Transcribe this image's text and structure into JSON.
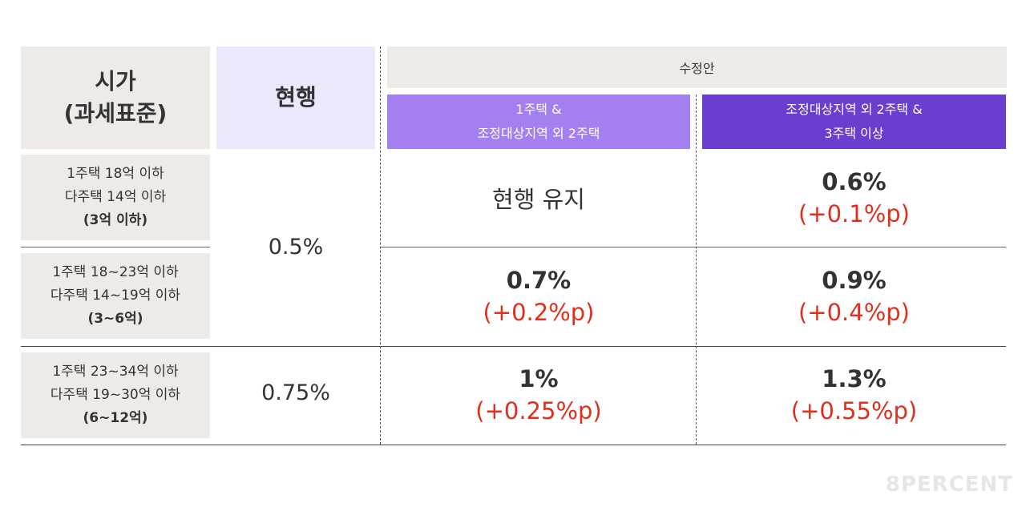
{
  "header": {
    "price_label_line1": "시가",
    "price_label_line2": "(과세표준)",
    "current_label": "현행",
    "revision_label": "수정안",
    "col1_line1": "1주택 &",
    "col1_line2": "조정대상지역 외 2주택",
    "col2_line1": "조정대상지역 외 2주택 &",
    "col2_line2": "3주택 이상"
  },
  "rows": [
    {
      "line1": "1주택 18억 이하",
      "line2": "다주택 14억 이하",
      "line3": "(3억 이하)",
      "col1_text": "현행 유지",
      "col2_main": "0.6%",
      "col2_sub": "(+0.1%p)"
    },
    {
      "line1": "1주택 18~23억 이하",
      "line2": "다주택 14~19억 이하",
      "line3": "(3~6억)",
      "col1_main": "0.7%",
      "col1_sub": "(+0.2%p)",
      "col2_main": "0.9%",
      "col2_sub": "(+0.4%p)"
    },
    {
      "line1": "1주택 23~34억 이하",
      "line2": "다주택 19~30억 이하",
      "line3": "(6~12억)",
      "col1_main": "1%",
      "col1_sub": "(+0.25%p)",
      "col2_main": "1.3%",
      "col2_sub": "(+0.55%p)"
    }
  ],
  "current_rates": {
    "group1": "0.5%",
    "group2": "0.75%"
  },
  "logo": "8PERCENT",
  "colors": {
    "header_grey": "#eeeae8",
    "header_lavender": "#ede7fb",
    "purple_light": "#a47ff0",
    "purple_dark": "#6a3fd0",
    "increase_red": "#e0301c"
  }
}
